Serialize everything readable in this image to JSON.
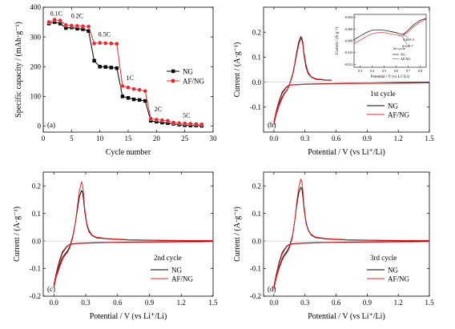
{
  "chart_data": [
    {
      "id": "a",
      "type": "line",
      "panel_label": "(a)",
      "xlabel": "Cycle number",
      "ylabel": "Specific capacity / (mAh·g⁻¹)",
      "xlim": [
        0,
        30
      ],
      "ylim": [
        -20,
        400
      ],
      "xticks": [
        0,
        5,
        10,
        15,
        20,
        25,
        30
      ],
      "yticks": [
        0,
        100,
        200,
        300,
        400
      ],
      "legend": "center-right",
      "rate_labels": [
        {
          "text": "0.1C",
          "x": 2.3,
          "y": 372
        },
        {
          "text": "0.2C",
          "x": 6.0,
          "y": 364
        },
        {
          "text": "0.5C",
          "x": 10.8,
          "y": 302
        },
        {
          "text": "1C",
          "x": 15.3,
          "y": 155
        },
        {
          "text": "2C",
          "x": 20.3,
          "y": 50
        },
        {
          "text": "5C",
          "x": 25.3,
          "y": 28
        }
      ],
      "series": [
        {
          "name": "NG",
          "color": "#000000",
          "marker": "square",
          "x": [
            1,
            2,
            3,
            4,
            5,
            6,
            7,
            8,
            9,
            10,
            11,
            12,
            13,
            14,
            15,
            16,
            17,
            18,
            19,
            20,
            21,
            22,
            23,
            24,
            25,
            26,
            27,
            28
          ],
          "y": [
            345,
            350,
            345,
            330,
            332,
            328,
            326,
            320,
            220,
            200,
            199,
            197,
            195,
            100,
            95,
            90,
            88,
            85,
            18,
            15,
            12,
            10,
            8,
            5,
            3,
            2,
            2,
            1
          ]
        },
        {
          "name": "AF/NG",
          "color": "#e8262e",
          "marker": "circle",
          "x": [
            1,
            2,
            3,
            4,
            5,
            6,
            7,
            8,
            9,
            10,
            11,
            12,
            13,
            14,
            15,
            16,
            17,
            18,
            19,
            20,
            21,
            22,
            23,
            24,
            25,
            26,
            27,
            28
          ],
          "y": [
            350,
            358,
            355,
            340,
            338,
            337,
            336,
            335,
            278,
            280,
            279,
            278,
            277,
            135,
            130,
            125,
            122,
            118,
            25,
            22,
            20,
            18,
            12,
            10,
            9,
            8,
            7,
            6
          ]
        }
      ]
    },
    {
      "id": "b",
      "type": "line",
      "panel_label": "(b)",
      "cycle_label": "1st cycle",
      "xlabel": "Potential / V (vs Li⁺/Li)",
      "ylabel": "Current / (A·g⁻¹)",
      "xlim": [
        -0.1,
        1.5
      ],
      "ylim": [
        -0.2,
        0.3
      ],
      "xticks": [
        0.0,
        0.3,
        0.6,
        0.9,
        1.2,
        1.5
      ],
      "yticks": [
        -0.1,
        0.0,
        0.1,
        0.2
      ],
      "legend": "bottom-right",
      "series": [
        {
          "name": "NG",
          "color": "#000000",
          "x": [
            0.0,
            0.02,
            0.05,
            0.08,
            0.1,
            0.13,
            0.15,
            0.18,
            0.2,
            0.22,
            0.24,
            0.26,
            0.27,
            0.28,
            0.29,
            0.31,
            0.33,
            0.36,
            0.4,
            0.5,
            0.7,
            1.0,
            1.3,
            1.5,
            1.5,
            1.3,
            1.0,
            0.7,
            0.5,
            0.4,
            0.3,
            0.2,
            0.15,
            0.12,
            0.08,
            0.05,
            0.02,
            0.0
          ],
          "y": [
            -0.165,
            -0.13,
            -0.09,
            -0.06,
            -0.045,
            -0.03,
            -0.008,
            0.03,
            0.07,
            0.12,
            0.16,
            0.182,
            0.17,
            0.15,
            0.11,
            0.06,
            0.035,
            0.02,
            0.012,
            0.008,
            0.005,
            0.003,
            0.002,
            0.002,
            -0.002,
            -0.003,
            -0.004,
            -0.005,
            -0.006,
            -0.007,
            -0.008,
            -0.01,
            -0.012,
            -0.02,
            -0.04,
            -0.075,
            -0.12,
            -0.16
          ]
        },
        {
          "name": "AF/NG",
          "color": "#e8262e",
          "x": [
            0.0,
            0.02,
            0.05,
            0.08,
            0.1,
            0.13,
            0.15,
            0.18,
            0.2,
            0.22,
            0.24,
            0.26,
            0.27,
            0.28,
            0.29,
            0.31,
            0.33,
            0.36,
            0.4,
            0.5,
            0.7,
            1.0,
            1.3,
            1.5,
            1.5,
            1.3,
            1.0,
            0.7,
            0.5,
            0.4,
            0.3,
            0.2,
            0.15,
            0.12,
            0.08,
            0.05,
            0.02,
            0.0
          ],
          "y": [
            -0.17,
            -0.135,
            -0.095,
            -0.065,
            -0.048,
            -0.032,
            -0.01,
            0.025,
            0.065,
            0.11,
            0.15,
            0.176,
            0.178,
            0.16,
            0.12,
            0.07,
            0.04,
            0.022,
            0.014,
            0.009,
            0.006,
            0.004,
            0.003,
            0.003,
            -0.003,
            -0.004,
            -0.005,
            -0.006,
            -0.007,
            -0.008,
            -0.009,
            -0.011,
            -0.013,
            -0.022,
            -0.045,
            -0.08,
            -0.125,
            -0.165
          ]
        }
      ],
      "inset": {
        "xlabel": "Potential / V (vs Li⁺/Li)",
        "ylabel": "Current / (A·g⁻¹)",
        "xlim": [
          0.25,
          0.85
        ],
        "ylim": [
          -0.0125,
          -0.0035
        ],
        "xticks": [
          0.3,
          0.4,
          0.5,
          0.6,
          0.7,
          0.8
        ],
        "yticks": [
          -0.004,
          -0.006,
          -0.008,
          -0.01,
          -0.012
        ],
        "legend_title": "1st cycle",
        "annotations": [
          {
            "text": "0.659 3",
            "x": 0.6593,
            "y": -0.0069
          },
          {
            "text": "0.649 7",
            "x": 0.6497,
            "y": -0.0072
          }
        ],
        "series": [
          {
            "name": "NG",
            "color": "#000000",
            "x": [
              0.25,
              0.3,
              0.35,
              0.4,
              0.45,
              0.5,
              0.55,
              0.6,
              0.63,
              0.66,
              0.7,
              0.75,
              0.8,
              0.85
            ],
            "y": [
              -0.0078,
              -0.0072,
              -0.0066,
              -0.0062,
              -0.0061,
              -0.0062,
              -0.0064,
              -0.0066,
              -0.0068,
              -0.0069,
              -0.0062,
              -0.0052,
              -0.0045,
              -0.0042
            ]
          },
          {
            "name": "AF/NG",
            "color": "#e8262e",
            "x": [
              0.25,
              0.3,
              0.35,
              0.4,
              0.45,
              0.5,
              0.55,
              0.6,
              0.63,
              0.65,
              0.7,
              0.75,
              0.8,
              0.85
            ],
            "y": [
              -0.0085,
              -0.0079,
              -0.0073,
              -0.0068,
              -0.0066,
              -0.0066,
              -0.0068,
              -0.007,
              -0.0071,
              -0.0072,
              -0.0065,
              -0.0055,
              -0.0048,
              -0.0043
            ]
          }
        ]
      }
    },
    {
      "id": "c",
      "type": "line",
      "panel_label": "(c)",
      "cycle_label": "2nd cycle",
      "xlabel": "Potential / V (vs Li⁺/Li)",
      "ylabel": "Current / (A·g⁻¹)",
      "xlim": [
        -0.1,
        1.5
      ],
      "ylim": [
        -0.2,
        0.25
      ],
      "xticks": [
        0.0,
        0.3,
        0.6,
        0.9,
        1.2,
        1.5
      ],
      "yticks": [
        -0.2,
        -0.1,
        0.0,
        0.1,
        0.2
      ],
      "legend": "bottom-right",
      "series": [
        {
          "name": "NG",
          "color": "#000000",
          "x": [
            0.0,
            0.02,
            0.05,
            0.08,
            0.1,
            0.13,
            0.15,
            0.18,
            0.2,
            0.22,
            0.24,
            0.26,
            0.27,
            0.28,
            0.29,
            0.31,
            0.33,
            0.36,
            0.4,
            0.5,
            0.7,
            1.0,
            1.3,
            1.5,
            1.5,
            1.3,
            1.0,
            0.7,
            0.5,
            0.4,
            0.3,
            0.2,
            0.15,
            0.12,
            0.08,
            0.05,
            0.02,
            0.0
          ],
          "y": [
            -0.165,
            -0.13,
            -0.09,
            -0.06,
            -0.05,
            -0.035,
            -0.02,
            0.02,
            0.06,
            0.11,
            0.16,
            0.183,
            0.178,
            0.15,
            0.11,
            0.06,
            0.035,
            0.02,
            0.012,
            0.008,
            0.004,
            0.002,
            0.001,
            0.001,
            -0.001,
            -0.002,
            -0.003,
            -0.004,
            -0.005,
            -0.006,
            -0.007,
            -0.009,
            -0.012,
            -0.02,
            -0.04,
            -0.075,
            -0.12,
            -0.16
          ]
        },
        {
          "name": "AF/NG",
          "color": "#e8262e",
          "x": [
            0.0,
            0.02,
            0.05,
            0.08,
            0.1,
            0.13,
            0.15,
            0.18,
            0.2,
            0.22,
            0.24,
            0.26,
            0.27,
            0.28,
            0.29,
            0.31,
            0.33,
            0.36,
            0.4,
            0.5,
            0.7,
            1.0,
            1.3,
            1.5,
            1.5,
            1.3,
            1.0,
            0.7,
            0.5,
            0.4,
            0.3,
            0.2,
            0.15,
            0.12,
            0.08,
            0.05,
            0.02,
            0.0
          ],
          "y": [
            -0.17,
            -0.135,
            -0.1,
            -0.07,
            -0.055,
            -0.04,
            -0.025,
            0.015,
            0.06,
            0.12,
            0.18,
            0.215,
            0.205,
            0.17,
            0.12,
            0.065,
            0.04,
            0.022,
            0.014,
            0.009,
            0.005,
            0.003,
            0.002,
            0.002,
            -0.002,
            -0.003,
            -0.004,
            -0.005,
            -0.006,
            -0.007,
            -0.008,
            -0.01,
            -0.013,
            -0.022,
            -0.045,
            -0.08,
            -0.125,
            -0.165
          ]
        }
      ]
    },
    {
      "id": "d",
      "type": "line",
      "panel_label": "(d)",
      "cycle_label": "3rd cycle",
      "xlabel": "Potential / V (vs Li⁺/Li)",
      "ylabel": "Current / (A·g⁻¹)",
      "xlim": [
        -0.1,
        1.5
      ],
      "ylim": [
        -0.2,
        0.25
      ],
      "xticks": [
        0.0,
        0.3,
        0.6,
        0.9,
        1.2,
        1.5
      ],
      "yticks": [
        -0.2,
        -0.1,
        0.0,
        0.1,
        0.2
      ],
      "legend": "bottom-right",
      "series": [
        {
          "name": "NG",
          "color": "#000000",
          "x": [
            0.0,
            0.02,
            0.05,
            0.08,
            0.1,
            0.13,
            0.15,
            0.18,
            0.2,
            0.22,
            0.24,
            0.26,
            0.27,
            0.28,
            0.29,
            0.31,
            0.33,
            0.36,
            0.4,
            0.5,
            0.7,
            1.0,
            1.3,
            1.5,
            1.5,
            1.3,
            1.0,
            0.7,
            0.5,
            0.4,
            0.3,
            0.2,
            0.15,
            0.12,
            0.08,
            0.05,
            0.02,
            0.0
          ],
          "y": [
            -0.17,
            -0.135,
            -0.095,
            -0.065,
            -0.05,
            -0.035,
            -0.02,
            0.02,
            0.07,
            0.13,
            0.175,
            0.195,
            0.19,
            0.16,
            0.12,
            0.065,
            0.04,
            0.022,
            0.013,
            0.008,
            0.004,
            0.002,
            0.001,
            0.001,
            -0.001,
            -0.002,
            -0.003,
            -0.004,
            -0.005,
            -0.006,
            -0.007,
            -0.009,
            -0.012,
            -0.02,
            -0.042,
            -0.078,
            -0.125,
            -0.165
          ]
        },
        {
          "name": "AF/NG",
          "color": "#e8262e",
          "x": [
            0.0,
            0.02,
            0.05,
            0.08,
            0.1,
            0.13,
            0.15,
            0.18,
            0.2,
            0.22,
            0.24,
            0.26,
            0.27,
            0.28,
            0.29,
            0.31,
            0.33,
            0.36,
            0.4,
            0.5,
            0.7,
            1.0,
            1.3,
            1.5,
            1.5,
            1.3,
            1.0,
            0.7,
            0.5,
            0.4,
            0.3,
            0.2,
            0.15,
            0.12,
            0.08,
            0.05,
            0.02,
            0.0
          ],
          "y": [
            -0.175,
            -0.14,
            -0.1,
            -0.07,
            -0.055,
            -0.04,
            -0.025,
            0.015,
            0.07,
            0.14,
            0.195,
            0.225,
            0.215,
            0.18,
            0.13,
            0.07,
            0.042,
            0.024,
            0.015,
            0.009,
            0.005,
            0.003,
            0.002,
            0.002,
            -0.002,
            -0.003,
            -0.004,
            -0.005,
            -0.006,
            -0.007,
            -0.008,
            -0.01,
            -0.013,
            -0.022,
            -0.047,
            -0.083,
            -0.13,
            -0.17
          ]
        }
      ]
    }
  ]
}
